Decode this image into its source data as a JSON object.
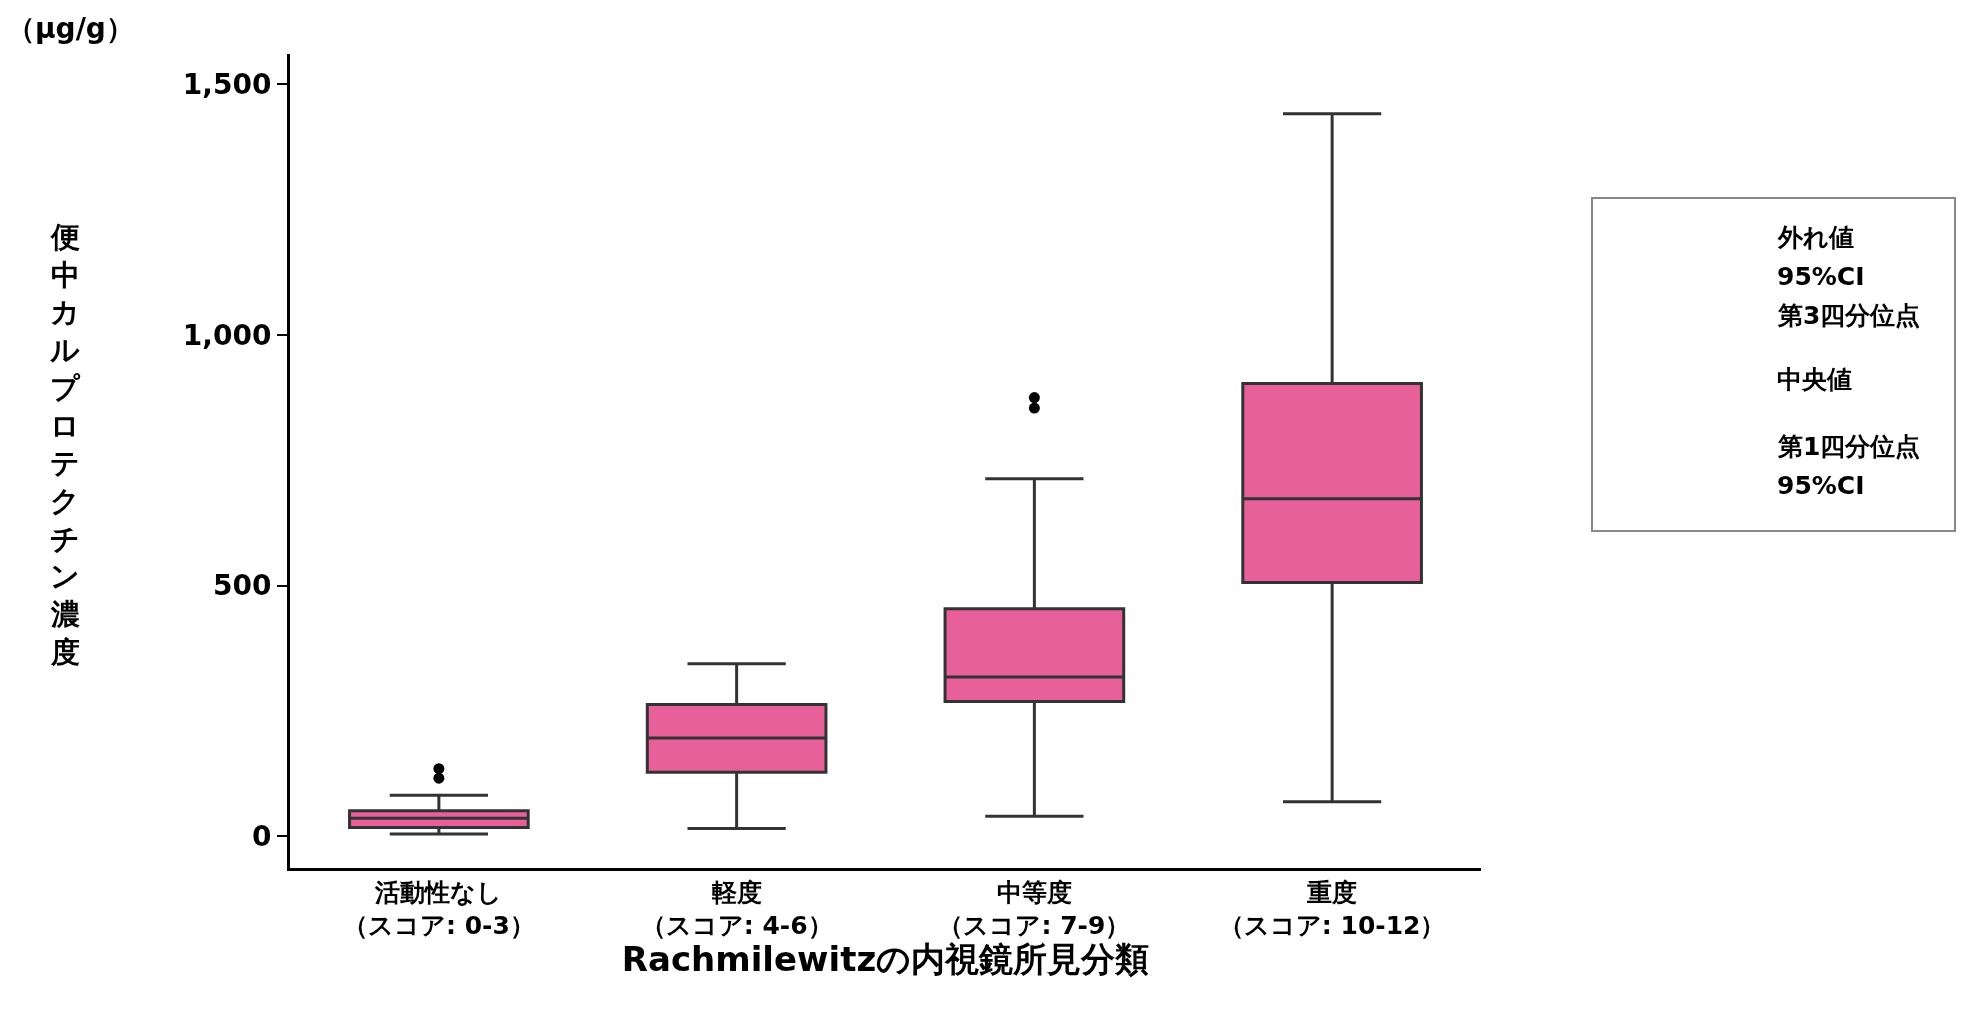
{
  "chart_data": {
    "type": "box",
    "categories": [
      "活動性なし（スコア: 0-3）",
      "軽度（スコア: 4-6）",
      "中等度（スコア: 7-9）",
      "重度（スコア: 10-12）"
    ],
    "xlabel": "Rachmilewitzの内視鏡所見分類",
    "ylabel": "便中カルプロテクチン濃度",
    "annotations": [
      "（μg/g）",
      "外れ値",
      "95%CI",
      "第3四分位点",
      "中央値",
      "第1四分位点",
      "95%CI"
    ],
    "color": "#e8609a",
    "boxes": [
      {
        "low": 5,
        "q1": 18,
        "median": 36,
        "q3": 51,
        "high": 82,
        "outliers": [
          116,
          135
        ]
      },
      {
        "low": 16,
        "q1": 128,
        "median": 196,
        "q3": 263,
        "high": 344
      },
      {
        "low": 40,
        "q1": 269,
        "median": 318,
        "q3": 454,
        "high": 713,
        "outliers": [
          854,
          875
        ]
      },
      {
        "low": 69,
        "q1": 506,
        "median": 673,
        "q3": 903,
        "high": 1441
      }
    ],
    "ylim": [
      -63,
      1560
    ],
    "yticks": [
      {
        "value": 0,
        "label": "0"
      },
      {
        "value": 500,
        "label": "500"
      },
      {
        "value": 1000,
        "label": "1,000"
      },
      {
        "value": 1500,
        "label": "1,500"
      }
    ]
  }
}
